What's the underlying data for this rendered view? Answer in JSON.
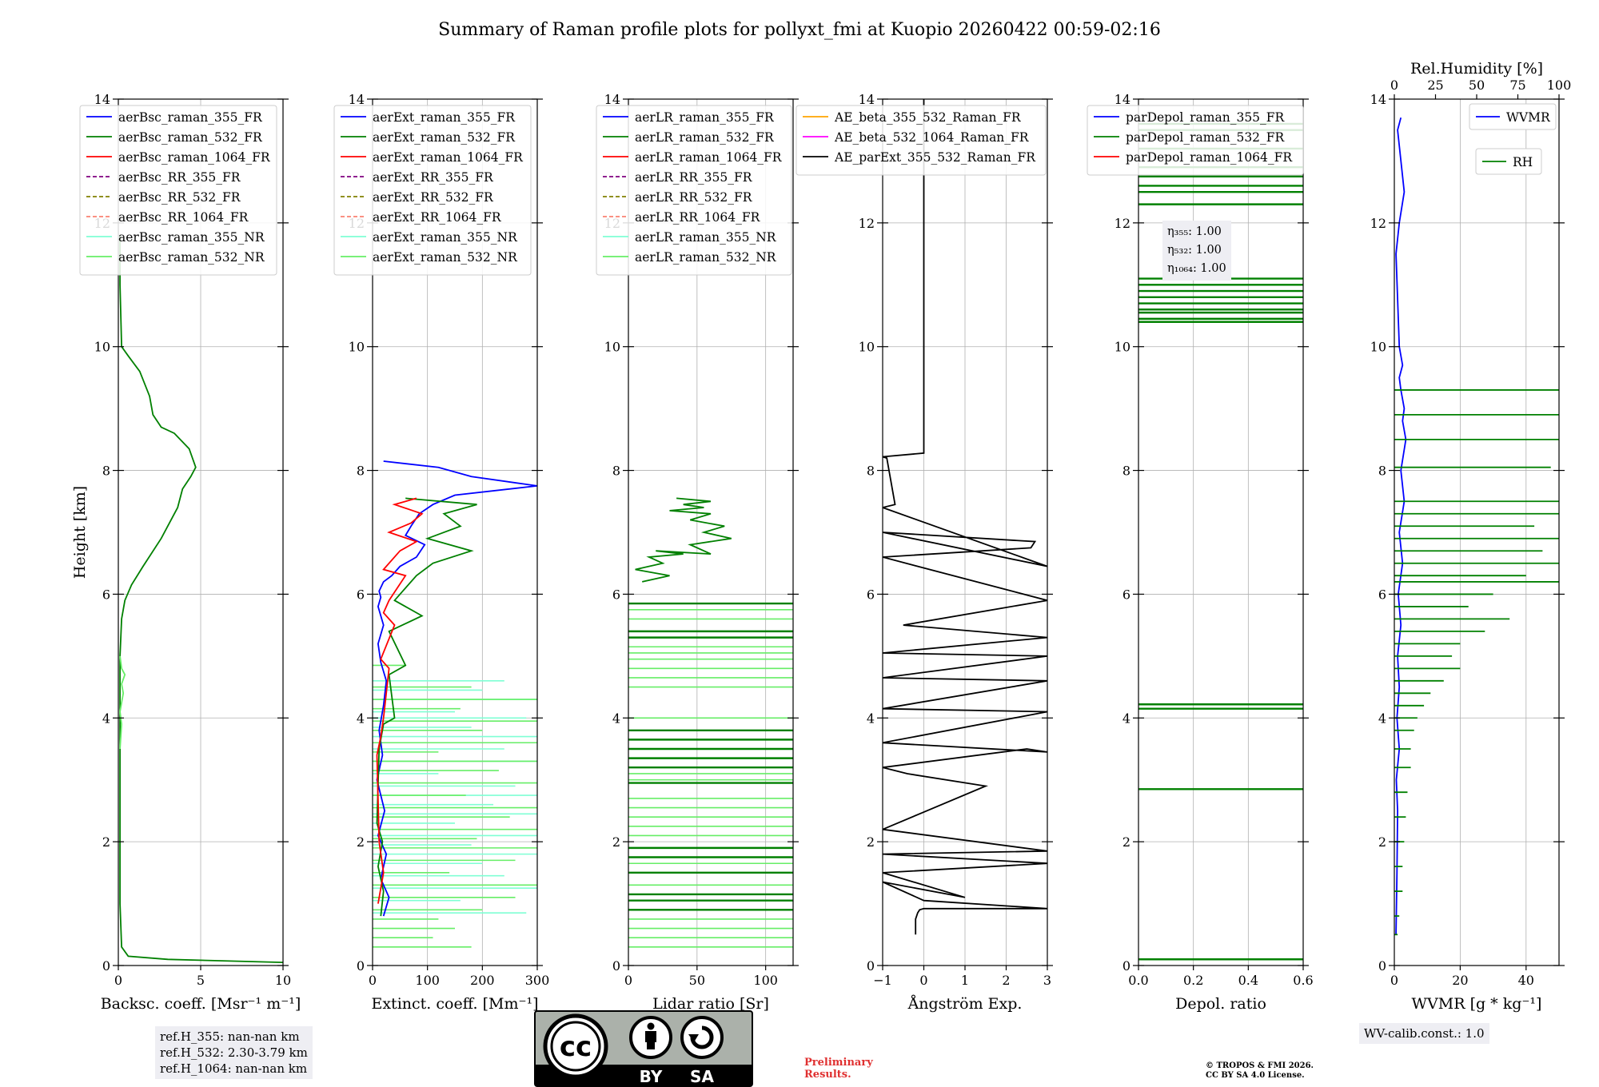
{
  "title": "Summary of Raman profile plots for pollyxt_fmi at Kuopio 20260422 00:59-02:16",
  "colors": {
    "blue": "#0000ff",
    "green": "#008000",
    "red": "#ff0000",
    "purple": "#800080",
    "olive": "#808000",
    "salmon": "#fa8072",
    "cyan": "#7fffd4",
    "lightgreen": "#66ee66",
    "orange": "#ffa500",
    "magenta": "#ff00ff",
    "black": "#000000"
  },
  "chart_data": [
    {
      "type": "line",
      "name": "backscatter",
      "xlabel": "Backsc. coeff. [Msr⁻¹ m⁻¹]",
      "ylabel": "Height [km]",
      "xlim": [
        0,
        10
      ],
      "ylim": [
        0,
        14
      ],
      "xticks": [
        "0",
        "5",
        "10"
      ],
      "yticks": [
        "0",
        "2",
        "4",
        "6",
        "8",
        "10",
        "12",
        "14"
      ],
      "grid": true,
      "legend": [
        "aerBsc_raman_355_FR",
        "aerBsc_raman_532_FR",
        "aerBsc_raman_1064_FR",
        "aerBsc_RR_355_FR",
        "aerBsc_RR_532_FR",
        "aerBsc_RR_1064_FR",
        "aerBsc_raman_355_NR",
        "aerBsc_raman_532_NR"
      ],
      "series": [
        {
          "name": "aerBsc_raman_532_FR",
          "color": "green",
          "x": [
            10,
            3,
            0.6,
            0.2,
            0.1,
            0.1,
            0.2,
            0.4,
            0.8,
            1.5,
            2.6,
            3.6,
            3.9,
            4.4,
            4.7,
            4.3,
            3.4,
            2.6,
            2.1,
            1.9,
            1.3,
            0.6,
            0.2,
            0.1,
            0.1
          ],
          "y": [
            0.05,
            0.1,
            0.15,
            0.3,
            1.0,
            5.0,
            5.6,
            5.9,
            6.15,
            6.45,
            6.9,
            7.4,
            7.7,
            7.9,
            8.05,
            8.35,
            8.6,
            8.7,
            8.9,
            9.2,
            9.6,
            9.85,
            10.0,
            11.0,
            11.8
          ]
        },
        {
          "name": "aerBsc_raman_532_NR",
          "color": "lightgreen",
          "x": [
            0.1,
            0.2,
            0.1,
            0.3,
            0.2,
            0.4,
            0.2,
            0.1
          ],
          "y": [
            3.5,
            3.9,
            4.1,
            4.4,
            4.55,
            4.7,
            4.8,
            5.0
          ]
        }
      ],
      "info_box": [
        "ref.H_355: nan-nan km",
        "ref.H_532: 2.30-3.79 km",
        "ref.H_1064: nan-nan km"
      ]
    },
    {
      "type": "line",
      "name": "extinction",
      "xlabel": "Extinct. coeff. [Mm⁻¹]",
      "xlim": [
        0,
        300
      ],
      "ylim": [
        0,
        14
      ],
      "xticks": [
        "0",
        "100",
        "200",
        "300"
      ],
      "yticks": [
        "0",
        "2",
        "4",
        "6",
        "8",
        "10",
        "12",
        "14"
      ],
      "grid": true,
      "legend": [
        "aerExt_raman_355_FR",
        "aerExt_raman_532_FR",
        "aerExt_raman_1064_FR",
        "aerExt_RR_355_FR",
        "aerExt_RR_532_FR",
        "aerExt_RR_1064_FR",
        "aerExt_raman_355_NR",
        "aerExt_raman_532_NR"
      ],
      "series": [
        {
          "name": "aerExt_raman_355_FR",
          "color": "blue",
          "x": [
            20,
            30,
            15,
            25,
            10,
            22,
            8,
            18,
            12,
            20,
            25,
            15,
            10,
            20,
            10,
            15,
            12,
            20,
            35,
            50,
            80,
            95,
            60,
            70,
            85,
            110,
            150,
            300,
            180,
            120,
            20
          ],
          "y": [
            0.8,
            1.1,
            1.4,
            1.8,
            2.1,
            2.5,
            3.0,
            3.4,
            3.8,
            4.2,
            4.6,
            4.9,
            5.2,
            5.5,
            5.8,
            5.95,
            6.05,
            6.2,
            6.3,
            6.45,
            6.6,
            6.8,
            6.95,
            7.1,
            7.3,
            7.45,
            7.6,
            7.75,
            7.9,
            8.05,
            8.15
          ]
        },
        {
          "name": "aerExt_raman_532_FR",
          "color": "green",
          "x": [
            15,
            20,
            10,
            18,
            8,
            12,
            20,
            40,
            30,
            60,
            30,
            90,
            40,
            80,
            110,
            180,
            100,
            160,
            130,
            190,
            60
          ],
          "y": [
            0.8,
            1.2,
            1.6,
            2.0,
            2.3,
            3.5,
            3.9,
            4.0,
            4.7,
            4.85,
            5.4,
            5.65,
            5.9,
            6.3,
            6.5,
            6.7,
            6.9,
            7.1,
            7.3,
            7.45,
            7.55
          ]
        },
        {
          "name": "aerExt_raman_1064_FR",
          "color": "red",
          "x": [
            10,
            20,
            12,
            8,
            15,
            20,
            30,
            15,
            40,
            20,
            30,
            60,
            20,
            50,
            80,
            30,
            70,
            90,
            40,
            80
          ],
          "y": [
            1.0,
            1.5,
            2.0,
            3.4,
            3.7,
            4.0,
            4.8,
            4.95,
            5.5,
            5.7,
            5.9,
            6.3,
            6.4,
            6.7,
            6.85,
            7.0,
            7.15,
            7.3,
            7.45,
            7.55
          ]
        }
      ],
      "nr_series": [
        {
          "name": "aerExt_raman_355_NR",
          "color": "cyan",
          "x": [
            280,
            160,
            300,
            240,
            200,
            300,
            180,
            300,
            150,
            300,
            220,
            300,
            260,
            120,
            300,
            240,
            300,
            180,
            280,
            150,
            300,
            200,
            240
          ],
          "y": [
            0.85,
            1.05,
            1.25,
            1.45,
            1.65,
            1.8,
            1.95,
            2.1,
            2.3,
            2.45,
            2.6,
            2.75,
            2.9,
            3.1,
            3.3,
            3.5,
            3.7,
            3.85,
            4.0,
            4.1,
            4.3,
            4.45,
            4.6
          ]
        },
        {
          "name": "aerExt_raman_532_NR",
          "color": "lightgreen",
          "x": [
            180,
            110,
            150,
            120,
            200,
            260,
            300,
            140,
            260,
            300,
            190,
            300,
            250,
            300,
            170,
            300,
            230,
            300,
            120,
            300,
            200,
            300,
            160,
            300,
            180,
            60
          ],
          "y": [
            0.3,
            0.45,
            0.6,
            0.75,
            0.9,
            1.1,
            1.3,
            1.5,
            1.7,
            1.9,
            2.05,
            2.2,
            2.4,
            2.55,
            2.75,
            2.95,
            3.15,
            3.3,
            3.45,
            3.6,
            3.8,
            3.95,
            4.15,
            4.3,
            4.5,
            4.85
          ]
        }
      ]
    },
    {
      "type": "line",
      "name": "lidar_ratio",
      "xlabel": "Lidar ratio [Sr]",
      "xlim": [
        0,
        120
      ],
      "ylim": [
        0,
        14
      ],
      "xticks": [
        "0",
        "50",
        "100"
      ],
      "yticks": [
        "0",
        "2",
        "4",
        "6",
        "8",
        "10",
        "12",
        "14"
      ],
      "grid": true,
      "legend": [
        "aerLR_raman_355_FR",
        "aerLR_raman_532_FR",
        "aerLR_raman_1064_FR",
        "aerLR_RR_355_FR",
        "aerLR_RR_532_FR",
        "aerLR_RR_1064_FR",
        "aerLR_raman_355_NR",
        "aerLR_raman_532_NR"
      ],
      "series": [
        {
          "name": "aerLR_raman_532_FR",
          "color": "green",
          "x": [
            10,
            30,
            5,
            25,
            15,
            40,
            20,
            60,
            45,
            75,
            55,
            70,
            45,
            60,
            30,
            55,
            40,
            60,
            35
          ],
          "y": [
            6.2,
            6.3,
            6.4,
            6.5,
            6.6,
            6.65,
            6.7,
            6.65,
            6.8,
            6.9,
            7.0,
            7.1,
            7.2,
            7.3,
            7.35,
            7.4,
            7.45,
            7.5,
            7.55
          ]
        }
      ],
      "hlines_fr": [
        0.9,
        1.05,
        1.15,
        1.5,
        1.75,
        1.9,
        2.95,
        3.2,
        3.35,
        3.5,
        3.65,
        3.8,
        5.3,
        5.4,
        5.85
      ],
      "hlines_nr": [
        0.3,
        0.45,
        0.6,
        0.75,
        1.3,
        1.65,
        2.1,
        2.25,
        2.4,
        2.55,
        2.7,
        3.0,
        3.1,
        4.0,
        4.5,
        4.65,
        4.8,
        4.95,
        5.05,
        5.15,
        5.6,
        5.75
      ]
    },
    {
      "type": "line",
      "name": "angstrom",
      "xlabel": "Ångström Exp.",
      "xlim": [
        -1,
        3
      ],
      "ylim": [
        0,
        14
      ],
      "xticks": [
        "−1",
        "0",
        "1",
        "2",
        "3"
      ],
      "yticks": [
        "0",
        "2",
        "4",
        "6",
        "8",
        "10",
        "12",
        "14"
      ],
      "grid": true,
      "legend": [
        "AE_beta_355_532_Raman_FR",
        "AE_beta_532_1064_Raman_FR",
        "AE_parExt_355_532_Raman_FR"
      ],
      "series": [
        {
          "name": "AE_parExt_355_532_Raman_FR",
          "color": "black",
          "x": [
            -0.2,
            -0.2,
            -0.15,
            -0.1,
            0.0,
            3.0,
            0.0,
            -1.0,
            1.0,
            -1.0,
            3.0,
            -1.0,
            3.0,
            -1.0,
            1.5,
            -0.4,
            -0.7,
            -1.0,
            2.5,
            3.0,
            -1.0,
            3.0,
            -1.0,
            3.0,
            -1.0,
            3.0,
            -1.0,
            3.0,
            -0.5,
            3.0,
            -1.0,
            2.6,
            2.7,
            -1.0,
            3.0,
            -1.0,
            -0.7,
            -0.9,
            -1.0,
            0.0,
            0.0,
            0.0
          ],
          "y": [
            0.5,
            0.75,
            0.85,
            0.9,
            0.92,
            0.92,
            1.05,
            1.35,
            1.1,
            1.5,
            1.65,
            1.8,
            1.85,
            2.2,
            2.9,
            3.1,
            3.15,
            3.2,
            3.5,
            3.45,
            3.6,
            4.1,
            4.15,
            4.6,
            4.65,
            5.0,
            5.05,
            5.3,
            5.5,
            5.9,
            6.6,
            6.75,
            6.85,
            7.0,
            6.45,
            7.4,
            7.45,
            8.2,
            8.22,
            8.28,
            11.0,
            14.0
          ]
        }
      ]
    },
    {
      "type": "line",
      "name": "depol",
      "xlabel": "Depol. ratio",
      "xlim": [
        0,
        0.6
      ],
      "ylim": [
        0,
        14
      ],
      "xticks": [
        "0.0",
        "0.2",
        "0.4",
        "0.6"
      ],
      "yticks": [
        "0",
        "2",
        "4",
        "6",
        "8",
        "10",
        "12",
        "14"
      ],
      "grid": true,
      "legend": [
        "parDepol_raman_355_FR",
        "parDepol_raman_532_FR",
        "parDepol_raman_1064_FR"
      ],
      "eta": [
        "η₃₅₅: 1.00",
        "η₅₃₂: 1.00",
        "η₁₀₆₄: 1.00"
      ],
      "hlines": [
        0.1,
        2.85,
        4.15,
        4.22,
        10.4,
        10.45,
        10.55,
        10.6,
        10.7,
        10.8,
        10.9,
        11.0,
        11.1,
        12.3,
        12.5,
        12.6,
        12.75,
        12.9,
        13.2,
        13.5,
        13.6
      ]
    },
    {
      "type": "line",
      "name": "wvmr",
      "xlabel": "WVMR [g * kg⁻¹]",
      "x2label": "Rel.Humidity [%]",
      "xlim": [
        0,
        50
      ],
      "x2lim": [
        0,
        100
      ],
      "ylim": [
        0,
        14
      ],
      "xticks": [
        "0",
        "20",
        "40"
      ],
      "x2ticks": [
        "0",
        "25",
        "50",
        "75",
        "100"
      ],
      "yticks": [
        "0",
        "2",
        "4",
        "6",
        "8",
        "10",
        "12",
        "14"
      ],
      "grid": true,
      "legend": [
        "WVMR",
        "RH"
      ],
      "info_box": [
        "WV-calib.const.: 1.0"
      ],
      "series": [
        {
          "name": "WVMR",
          "color": "blue",
          "x": [
            0.5,
            0.8,
            1.0,
            0.6,
            1.5,
            0.8,
            1.5,
            1.0,
            2.0,
            1.2,
            2.5,
            1.5,
            3.0,
            2.0,
            3.5,
            2.5,
            3.0,
            2.0,
            1.5,
            2.5,
            1.5,
            0.5,
            1.5,
            3.0,
            1.0,
            2.0
          ],
          "y": [
            0.5,
            1.5,
            2.5,
            3.0,
            3.5,
            4.0,
            4.5,
            5.0,
            5.5,
            6.0,
            6.5,
            7.0,
            7.5,
            8.0,
            8.5,
            8.8,
            9.0,
            9.3,
            9.5,
            9.7,
            10.0,
            11.5,
            12.0,
            12.5,
            13.5,
            13.7
          ]
        },
        {
          "name": "RH",
          "color": "green",
          "hlines_y": [
            0.5,
            0.8,
            1.2,
            1.6,
            2.0,
            2.4,
            2.8,
            3.2,
            3.5,
            3.8,
            4.0,
            4.2,
            4.4,
            4.6,
            4.8,
            5.0,
            5.2,
            5.4,
            5.6,
            5.8,
            6.0,
            6.2,
            6.3,
            6.5,
            6.7,
            6.9,
            7.1,
            7.3,
            7.5,
            8.05,
            8.5,
            8.9,
            9.3
          ],
          "hlines_x": [
            2,
            3,
            5,
            5,
            6,
            7,
            8,
            10,
            10,
            12,
            14,
            18,
            22,
            30,
            40,
            35,
            40,
            55,
            70,
            45,
            60,
            100,
            80,
            100,
            90,
            100,
            85,
            100,
            100,
            95,
            100,
            100,
            100
          ]
        }
      ]
    }
  ],
  "footer": {
    "cc_by": "BY",
    "cc_sa": "SA",
    "cc_mark": "cc",
    "preliminary_1": "Preliminary",
    "preliminary_2": "Results.",
    "copyright_1": "© TROPOS & FMI 2026.",
    "copyright_2": "CC BY SA 4.0 License."
  }
}
